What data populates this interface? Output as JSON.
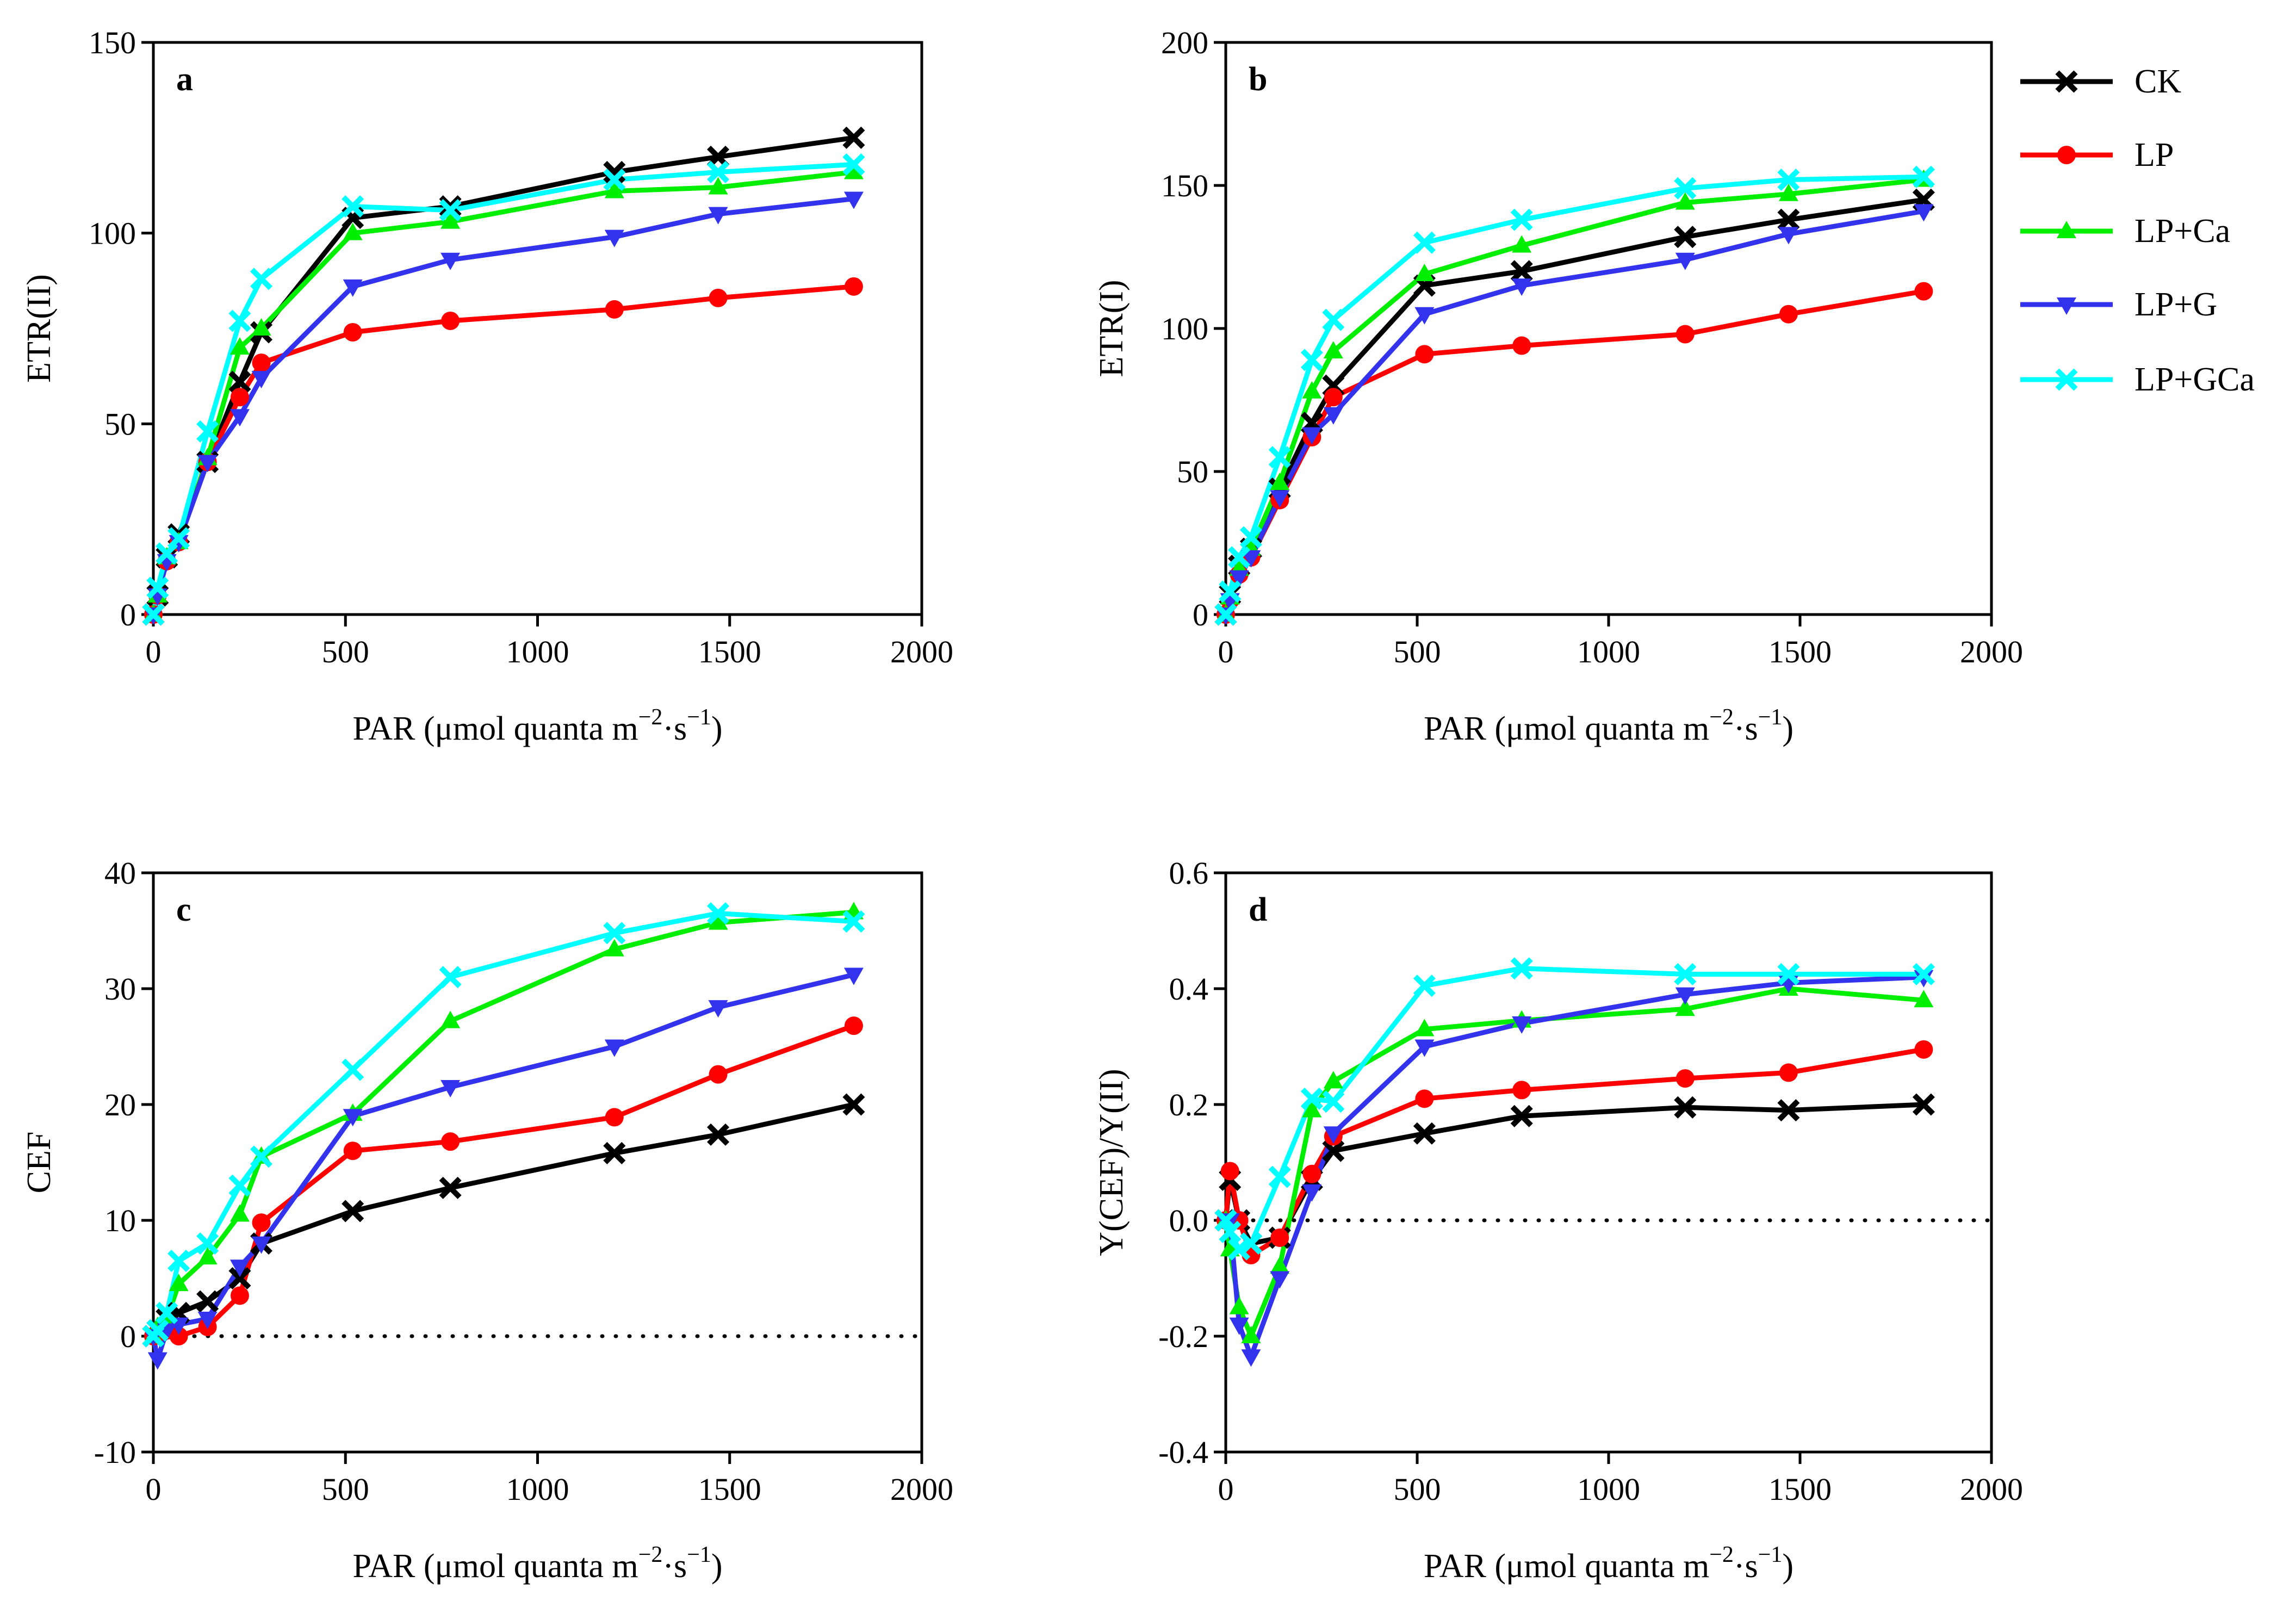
{
  "figure": {
    "legend": [
      {
        "key": "CK",
        "label": "CK",
        "color": "#000000",
        "marker": "x"
      },
      {
        "key": "LP",
        "label": "LP",
        "color": "#ff0000",
        "marker": "circle"
      },
      {
        "key": "LPCa",
        "label": "LP+Ca",
        "color": "#00ee00",
        "marker": "triangle-up"
      },
      {
        "key": "LPG",
        "label": "LP+G",
        "color": "#3333ee",
        "marker": "triangle-down"
      },
      {
        "key": "LPGCa",
        "label": "LP+GCa",
        "color": "#00ffff",
        "marker": "x"
      }
    ]
  },
  "chart_data": [
    {
      "type": "line",
      "panel": "a",
      "xlabel": "PAR (μmol quanta m",
      "xlabel_sup1": "−2",
      "xlabel_mid": "·s",
      "xlabel_sup2": "−1",
      "xlabel_end": ")",
      "ylabel": "ETR(II)",
      "xlim": [
        0,
        2000
      ],
      "ylim": [
        0,
        150
      ],
      "xticks": [
        0,
        500,
        1000,
        1500,
        2000
      ],
      "yticks": [
        0,
        50,
        100,
        150
      ],
      "ytick_labels": [
        "0",
        "50",
        "100",
        "150"
      ],
      "zero_line": false,
      "x": [
        0,
        11,
        35,
        66,
        141,
        225,
        281,
        519,
        773,
        1200,
        1470,
        1823
      ],
      "series": [
        {
          "key": "CK",
          "values": [
            0,
            5,
            15,
            21,
            40,
            61,
            74,
            104,
            107,
            116,
            120,
            125
          ]
        },
        {
          "key": "LP",
          "values": [
            0,
            5,
            14,
            19,
            40,
            57,
            66,
            74,
            77,
            80,
            83,
            86
          ]
        },
        {
          "key": "LPCa",
          "values": [
            0,
            5,
            15,
            19,
            41,
            70,
            75,
            100,
            103,
            111,
            112,
            116
          ]
        },
        {
          "key": "LPG",
          "values": [
            0,
            5,
            14,
            19,
            40,
            52,
            62,
            86,
            93,
            99,
            105,
            109
          ]
        },
        {
          "key": "LPGCa",
          "values": [
            0,
            7,
            16,
            20,
            48,
            77,
            88,
            107,
            106,
            114,
            116,
            118
          ]
        }
      ]
    },
    {
      "type": "line",
      "panel": "b",
      "xlabel": "PAR (μmol quanta m",
      "xlabel_sup1": "−2",
      "xlabel_mid": "·s",
      "xlabel_sup2": "−1",
      "xlabel_end": ")",
      "ylabel": "ETR(I)",
      "xlim": [
        0,
        2000
      ],
      "ylim": [
        0,
        200
      ],
      "xticks": [
        0,
        500,
        1000,
        1500,
        2000
      ],
      "yticks": [
        0,
        50,
        100,
        150,
        200
      ],
      "ytick_labels": [
        "0",
        "50",
        "100",
        "150",
        "200"
      ],
      "zero_line": false,
      "x": [
        0,
        11,
        35,
        66,
        141,
        225,
        281,
        519,
        773,
        1200,
        1470,
        1823
      ],
      "series": [
        {
          "key": "CK",
          "values": [
            0,
            7,
            17,
            23,
            44,
            67,
            80,
            115,
            120,
            132,
            138,
            145
          ]
        },
        {
          "key": "LP",
          "values": [
            0,
            5,
            14,
            20,
            40,
            62,
            76,
            91,
            94,
            98,
            105,
            113
          ]
        },
        {
          "key": "LPCa",
          "values": [
            0,
            6,
            16,
            23,
            46,
            78,
            92,
            119,
            129,
            144,
            147,
            152
          ]
        },
        {
          "key": "LPG",
          "values": [
            0,
            5,
            13,
            20,
            41,
            63,
            70,
            105,
            115,
            124,
            133,
            141
          ]
        },
        {
          "key": "LPGCa",
          "values": [
            0,
            8,
            20,
            27,
            55,
            89,
            103,
            130,
            138,
            149,
            152,
            153
          ]
        }
      ]
    },
    {
      "type": "line",
      "panel": "c",
      "xlabel": "PAR (μmol quanta m",
      "xlabel_sup1": "−2",
      "xlabel_mid": "·s",
      "xlabel_sup2": "−1",
      "xlabel_end": ")",
      "ylabel": "CEF",
      "xlim": [
        0,
        2000
      ],
      "ylim": [
        -10,
        40
      ],
      "xticks": [
        0,
        500,
        1000,
        1500,
        2000
      ],
      "yticks": [
        -10,
        0,
        10,
        20,
        30,
        40
      ],
      "ytick_labels": [
        "-10",
        "0",
        "10",
        "20",
        "30",
        "40"
      ],
      "zero_line": true,
      "x": [
        0,
        11,
        35,
        66,
        141,
        225,
        281,
        519,
        773,
        1200,
        1470,
        1823
      ],
      "series": [
        {
          "key": "CK",
          "values": [
            0,
            0.5,
            1.5,
            2,
            3,
            5,
            8,
            10.8,
            12.8,
            15.8,
            17.4,
            20
          ]
        },
        {
          "key": "LP",
          "values": [
            0,
            0.3,
            0.5,
            0,
            0.8,
            3.5,
            9.8,
            16,
            16.8,
            18.9,
            22.6,
            26.8
          ]
        },
        {
          "key": "LPCa",
          "values": [
            0,
            0.8,
            1.5,
            4.5,
            6.8,
            10.5,
            15.5,
            19.2,
            27.2,
            33.4,
            35.7,
            36.6
          ]
        },
        {
          "key": "LPG",
          "values": [
            0,
            -2,
            0.5,
            1,
            1.5,
            6,
            8,
            19,
            21.5,
            25,
            28.4,
            31.2
          ]
        },
        {
          "key": "LPGCa",
          "values": [
            0,
            0.5,
            2,
            6.5,
            8,
            13,
            15.5,
            23,
            31,
            34.8,
            36.5,
            35.8
          ]
        }
      ]
    },
    {
      "type": "line",
      "panel": "d",
      "xlabel": "PAR (μmol quanta m",
      "xlabel_sup1": "−2",
      "xlabel_mid": "·s",
      "xlabel_sup2": "−1",
      "xlabel_end": ")",
      "ylabel": "Y(CEF)/Y(II)",
      "xlim": [
        0,
        2000
      ],
      "ylim": [
        -0.4,
        0.6
      ],
      "xticks": [
        0,
        500,
        1000,
        1500,
        2000
      ],
      "yticks": [
        -0.4,
        -0.2,
        0,
        0.2,
        0.4,
        0.6
      ],
      "ytick_labels": [
        "-0.4",
        "-0.2",
        "0.0",
        "0.2",
        "0.4",
        "0.6"
      ],
      "zero_line": true,
      "x": [
        0,
        11,
        35,
        66,
        141,
        225,
        281,
        519,
        773,
        1200,
        1470,
        1823
      ],
      "series": [
        {
          "key": "CK",
          "values": [
            0,
            0.07,
            0,
            -0.04,
            -0.03,
            0.07,
            0.12,
            0.15,
            0.18,
            0.195,
            0.19,
            0.2
          ]
        },
        {
          "key": "LP",
          "values": [
            0,
            0.085,
            0,
            -0.06,
            -0.03,
            0.08,
            0.145,
            0.21,
            0.225,
            0.245,
            0.255,
            0.295
          ]
        },
        {
          "key": "LPCa",
          "values": [
            0,
            -0.05,
            -0.15,
            -0.2,
            -0.08,
            0.19,
            0.24,
            0.33,
            0.345,
            0.365,
            0.4,
            0.38
          ]
        },
        {
          "key": "LPG",
          "values": [
            0,
            0,
            -0.18,
            -0.235,
            -0.1,
            0.05,
            0.15,
            0.3,
            0.34,
            0.39,
            0.41,
            0.42
          ]
        },
        {
          "key": "LPGCa",
          "values": [
            0,
            -0.02,
            -0.05,
            -0.04,
            0.075,
            0.21,
            0.205,
            0.405,
            0.435,
            0.425,
            0.425,
            0.425
          ]
        }
      ]
    }
  ]
}
